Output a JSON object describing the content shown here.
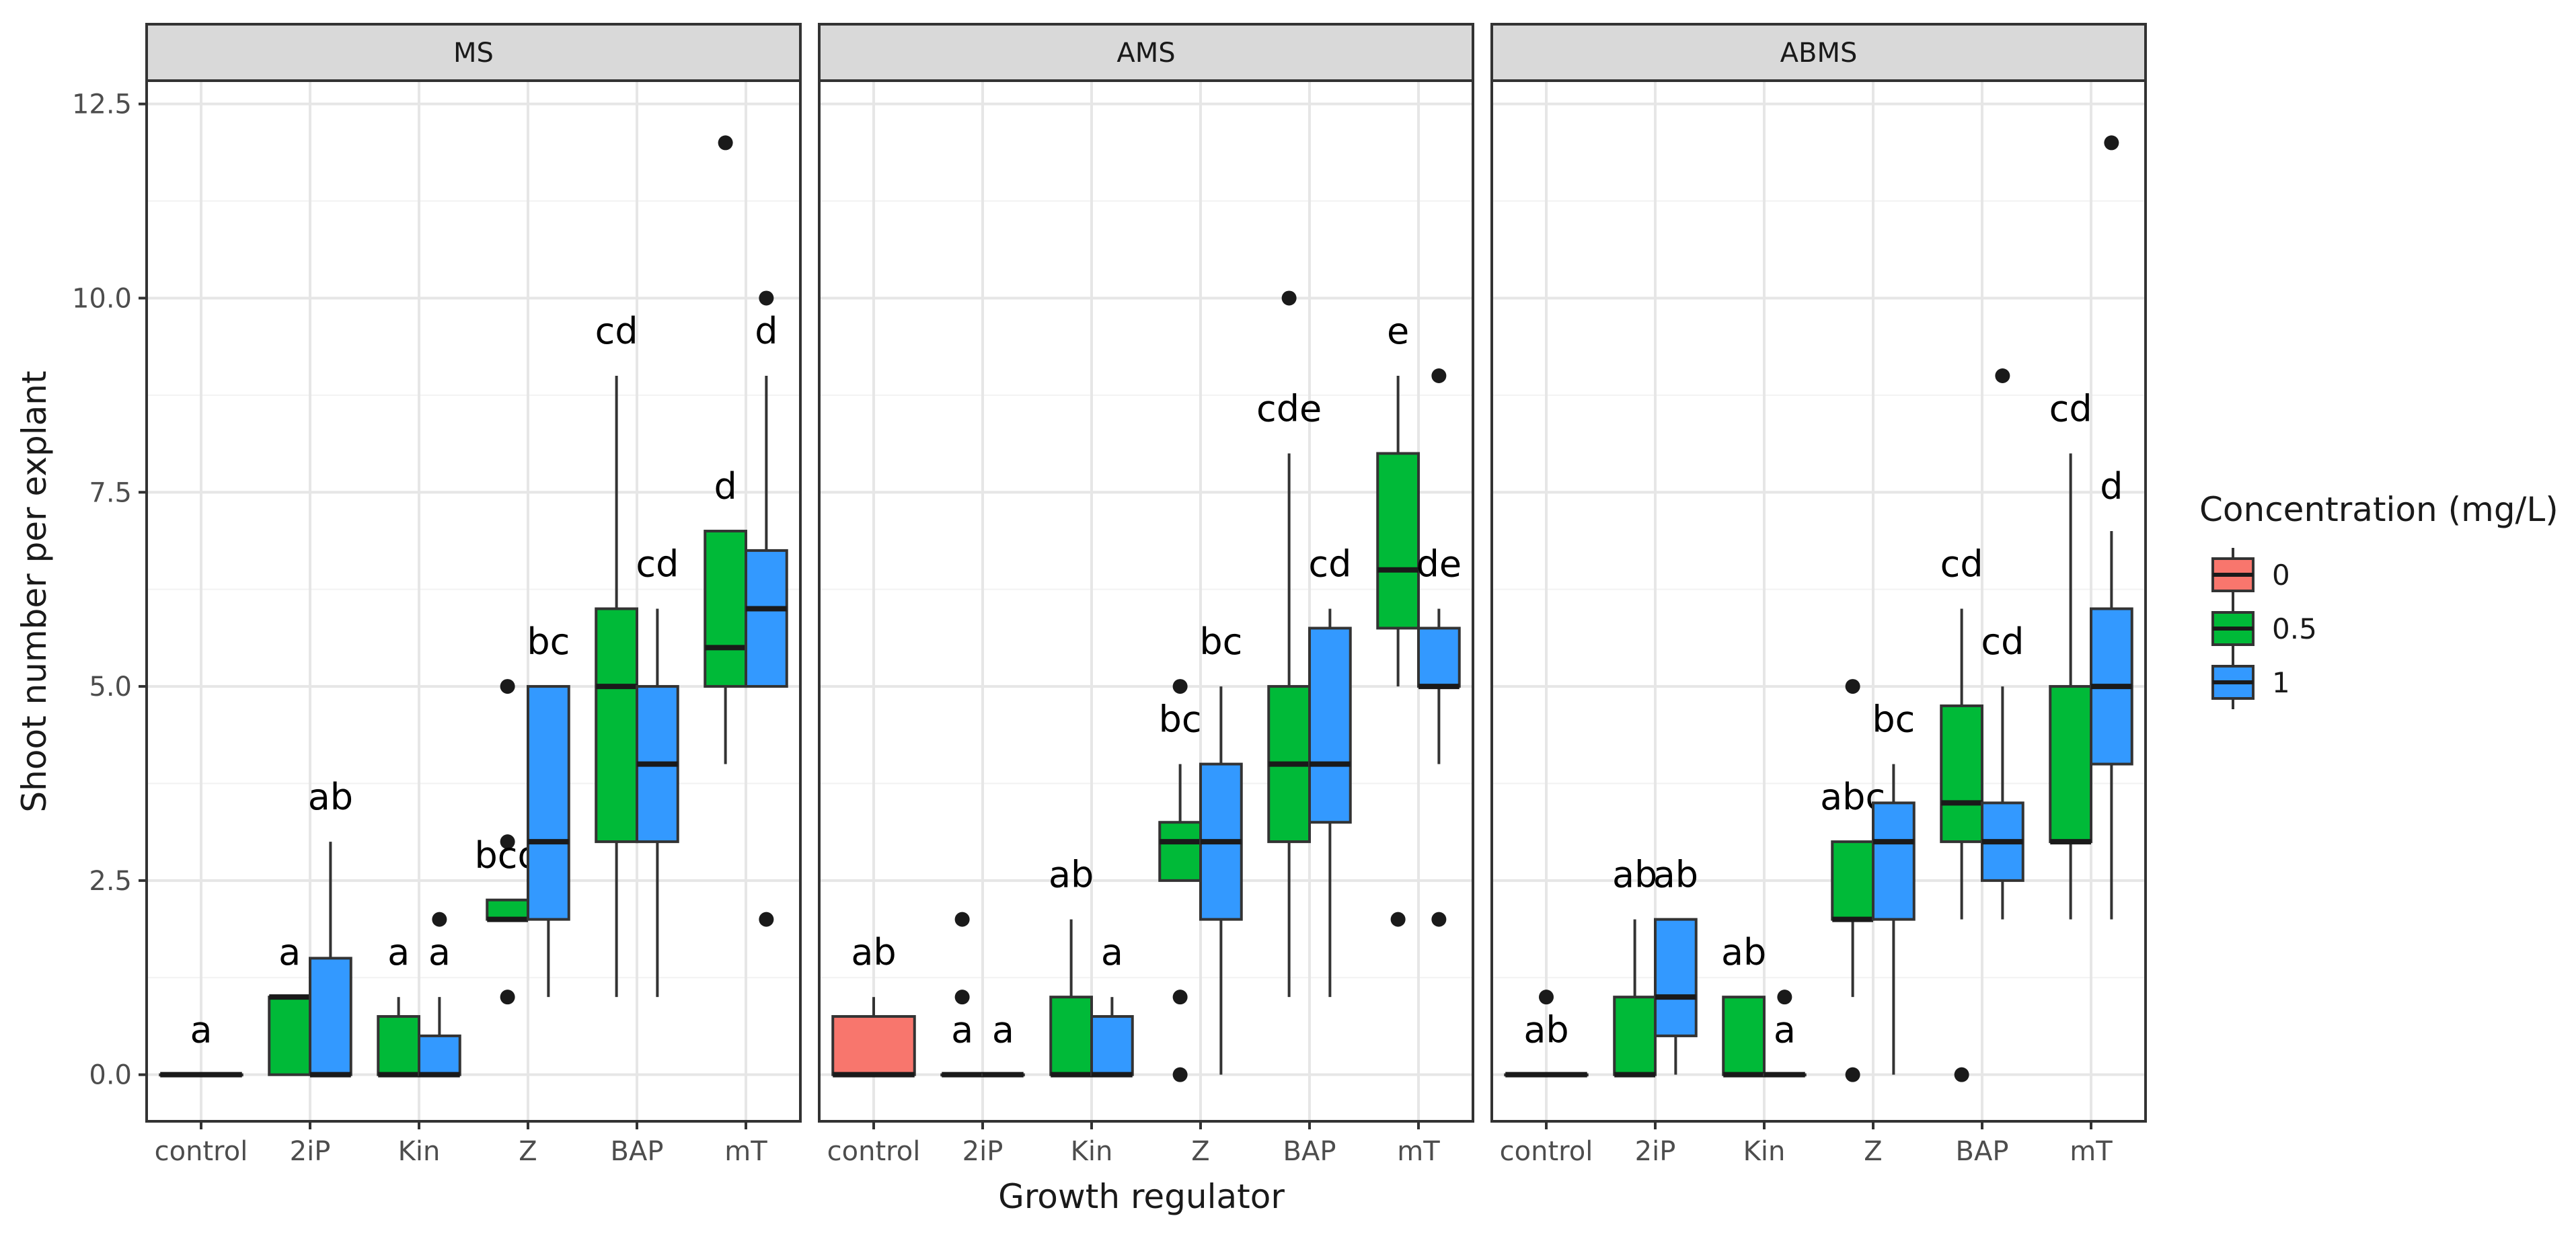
{
  "chart_data": {
    "type": "boxplot",
    "xlabel": "Growth regulator",
    "ylabel": "Shoot number per explant",
    "ylim": [
      -0.6,
      12.8
    ],
    "yticks": [
      0.0,
      2.5,
      5.0,
      7.5,
      10.0,
      12.5
    ],
    "ytick_labels": [
      "0.0",
      "2.5",
      "5.0",
      "7.5",
      "10.0",
      "12.5"
    ],
    "categories": [
      "control",
      "2iP",
      "Kin",
      "Z",
      "BAP",
      "mT"
    ],
    "legend": {
      "title": "Concentration (mg/L)",
      "position": "right",
      "entries": [
        {
          "label": "0",
          "color": "#F8766D"
        },
        {
          "label": "0.5",
          "color": "#00BA38"
        },
        {
          "label": "1",
          "color": "#3399FF"
        }
      ]
    },
    "facets": [
      {
        "name": "MS",
        "boxes": [
          {
            "category": "control",
            "conc": "0",
            "whisker_low": 0,
            "q1": 0,
            "median": 0,
            "q3": 0,
            "whisker_high": 0,
            "outliers": [],
            "letter": "a"
          },
          {
            "category": "2iP",
            "conc": "0.5",
            "whisker_low": 0,
            "q1": 0,
            "median": 1,
            "q3": 1,
            "whisker_high": 1,
            "outliers": [],
            "letter": "a"
          },
          {
            "category": "2iP",
            "conc": "1",
            "whisker_low": 0,
            "q1": 0,
            "median": 0,
            "q3": 1.5,
            "whisker_high": 3,
            "outliers": [],
            "letter": "ab"
          },
          {
            "category": "Kin",
            "conc": "0.5",
            "whisker_low": 0,
            "q1": 0,
            "median": 0,
            "q3": 0.75,
            "whisker_high": 1,
            "outliers": [],
            "letter": "a"
          },
          {
            "category": "Kin",
            "conc": "1",
            "whisker_low": 0,
            "q1": 0,
            "median": 0,
            "q3": 0.5,
            "whisker_high": 1,
            "outliers": [
              2
            ],
            "letter": "a"
          },
          {
            "category": "Z",
            "conc": "0.5",
            "whisker_low": 2,
            "q1": 2,
            "median": 2,
            "q3": 2.25,
            "whisker_high": 2.25,
            "outliers": [
              1,
              3,
              5
            ],
            "letter": "bcd"
          },
          {
            "category": "Z",
            "conc": "1",
            "whisker_low": 1,
            "q1": 2,
            "median": 3,
            "q3": 5,
            "whisker_high": 5,
            "outliers": [],
            "letter": "bc"
          },
          {
            "category": "BAP",
            "conc": "0.5",
            "whisker_low": 1,
            "q1": 3,
            "median": 5,
            "q3": 6,
            "whisker_high": 9,
            "outliers": [],
            "letter": "cd"
          },
          {
            "category": "BAP",
            "conc": "1",
            "whisker_low": 1,
            "q1": 3,
            "median": 4,
            "q3": 5,
            "whisker_high": 6,
            "outliers": [],
            "letter": "cd"
          },
          {
            "category": "mT",
            "conc": "0.5",
            "whisker_low": 4,
            "q1": 5,
            "median": 5.5,
            "q3": 7,
            "whisker_high": 7,
            "outliers": [
              12
            ],
            "letter": "d"
          },
          {
            "category": "mT",
            "conc": "1",
            "whisker_low": 5,
            "q1": 5,
            "median": 6,
            "q3": 6.75,
            "whisker_high": 9,
            "outliers": [
              2,
              10
            ],
            "letter": "d"
          }
        ]
      },
      {
        "name": "AMS",
        "boxes": [
          {
            "category": "control",
            "conc": "0",
            "whisker_low": 0,
            "q1": 0,
            "median": 0,
            "q3": 0.75,
            "whisker_high": 1,
            "outliers": [],
            "letter": "ab"
          },
          {
            "category": "2iP",
            "conc": "0.5",
            "whisker_low": 0,
            "q1": 0,
            "median": 0,
            "q3": 0,
            "whisker_high": 0,
            "outliers": [
              1,
              2
            ],
            "letter": "a"
          },
          {
            "category": "2iP",
            "conc": "1",
            "whisker_low": 0,
            "q1": 0,
            "median": 0,
            "q3": 0,
            "whisker_high": 0,
            "outliers": [],
            "letter": "a"
          },
          {
            "category": "Kin",
            "conc": "0.5",
            "whisker_low": 0,
            "q1": 0,
            "median": 0,
            "q3": 1,
            "whisker_high": 2,
            "outliers": [],
            "letter": "ab"
          },
          {
            "category": "Kin",
            "conc": "1",
            "whisker_low": 0,
            "q1": 0,
            "median": 0,
            "q3": 0.75,
            "whisker_high": 1,
            "outliers": [],
            "letter": "a"
          },
          {
            "category": "Z",
            "conc": "0.5",
            "whisker_low": 2.5,
            "q1": 2.5,
            "median": 3,
            "q3": 3.25,
            "whisker_high": 4,
            "outliers": [
              0,
              1,
              5
            ],
            "letter": "bc"
          },
          {
            "category": "Z",
            "conc": "1",
            "whisker_low": 0,
            "q1": 2,
            "median": 3,
            "q3": 4,
            "whisker_high": 5,
            "outliers": [],
            "letter": "bc"
          },
          {
            "category": "BAP",
            "conc": "0.5",
            "whisker_low": 1,
            "q1": 3,
            "median": 4,
            "q3": 5,
            "whisker_high": 8,
            "outliers": [
              10
            ],
            "letter": "cde"
          },
          {
            "category": "BAP",
            "conc": "1",
            "whisker_low": 1,
            "q1": 3.25,
            "median": 4,
            "q3": 5.75,
            "whisker_high": 6,
            "outliers": [],
            "letter": "cd"
          },
          {
            "category": "mT",
            "conc": "0.5",
            "whisker_low": 5,
            "q1": 5.75,
            "median": 6.5,
            "q3": 8,
            "whisker_high": 9,
            "outliers": [
              2
            ],
            "letter": "e"
          },
          {
            "category": "mT",
            "conc": "1",
            "whisker_low": 4,
            "q1": 5,
            "median": 5,
            "q3": 5.75,
            "whisker_high": 6,
            "outliers": [
              2,
              9
            ],
            "letter": "de"
          }
        ]
      },
      {
        "name": "ABMS",
        "boxes": [
          {
            "category": "control",
            "conc": "0",
            "whisker_low": 0,
            "q1": 0,
            "median": 0,
            "q3": 0,
            "whisker_high": 0,
            "outliers": [
              1
            ],
            "letter": "ab"
          },
          {
            "category": "2iP",
            "conc": "0.5",
            "whisker_low": 0,
            "q1": 0,
            "median": 0,
            "q3": 1,
            "whisker_high": 2,
            "outliers": [],
            "letter": "ab"
          },
          {
            "category": "2iP",
            "conc": "1",
            "whisker_low": 0,
            "q1": 0.5,
            "median": 1,
            "q3": 2,
            "whisker_high": 2,
            "outliers": [],
            "letter": "ab"
          },
          {
            "category": "Kin",
            "conc": "0.5",
            "whisker_low": 0,
            "q1": 0,
            "median": 0,
            "q3": 1,
            "whisker_high": 1,
            "outliers": [],
            "letter": "ab"
          },
          {
            "category": "Kin",
            "conc": "1",
            "whisker_low": 0,
            "q1": 0,
            "median": 0,
            "q3": 0,
            "whisker_high": 0,
            "outliers": [
              1
            ],
            "letter": "a"
          },
          {
            "category": "Z",
            "conc": "0.5",
            "whisker_low": 1,
            "q1": 2,
            "median": 2,
            "q3": 3,
            "whisker_high": 3,
            "outliers": [
              0,
              5
            ],
            "letter": "abc"
          },
          {
            "category": "Z",
            "conc": "1",
            "whisker_low": 0,
            "q1": 2,
            "median": 3,
            "q3": 3.5,
            "whisker_high": 4,
            "outliers": [],
            "letter": "bc"
          },
          {
            "category": "BAP",
            "conc": "0.5",
            "whisker_low": 2,
            "q1": 3,
            "median": 3.5,
            "q3": 4.75,
            "whisker_high": 6,
            "outliers": [
              0
            ],
            "letter": "cd"
          },
          {
            "category": "BAP",
            "conc": "1",
            "whisker_low": 2,
            "q1": 2.5,
            "median": 3,
            "q3": 3.5,
            "whisker_high": 5,
            "outliers": [
              9
            ],
            "letter": "cd"
          },
          {
            "category": "mT",
            "conc": "0.5",
            "whisker_low": 2,
            "q1": 3,
            "median": 3,
            "q3": 5,
            "whisker_high": 8,
            "outliers": [],
            "letter": "cd"
          },
          {
            "category": "mT",
            "conc": "1",
            "whisker_low": 2,
            "q1": 4,
            "median": 5,
            "q3": 6,
            "whisker_high": 7,
            "outliers": [
              12
            ],
            "letter": "d"
          }
        ]
      }
    ]
  }
}
